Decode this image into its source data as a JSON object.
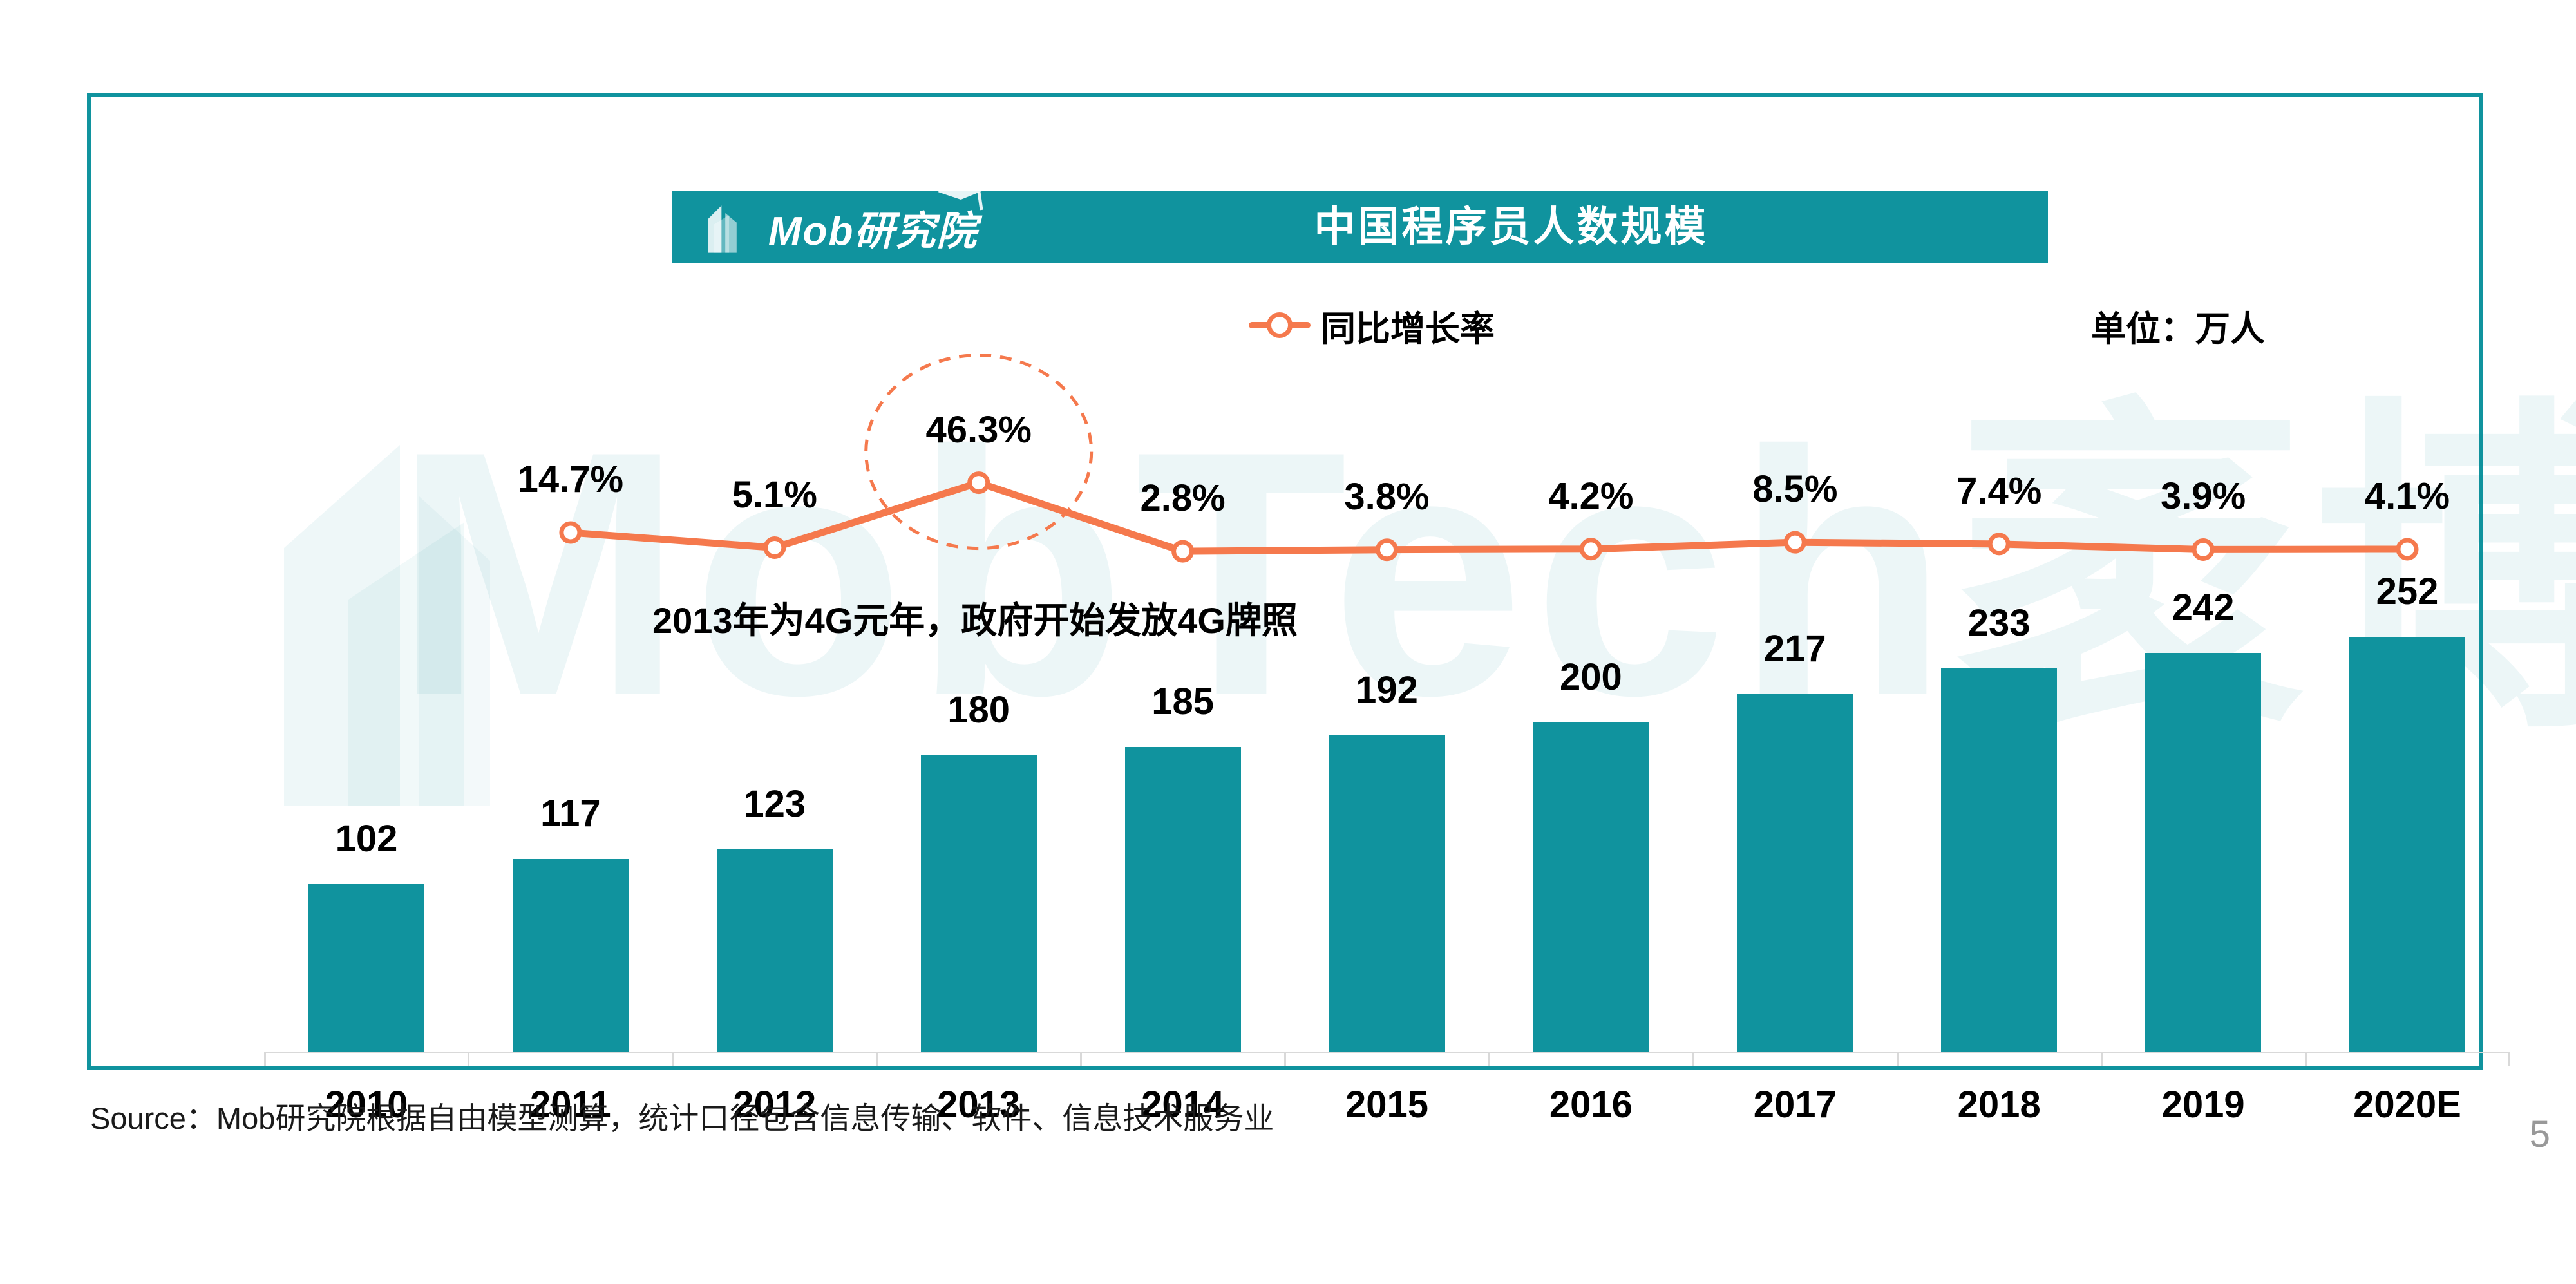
{
  "header": {
    "logo_text": "Mob研究院",
    "title": "中国程序员人数规模"
  },
  "legend": {
    "label": "同比增长率",
    "unit_label": "单位：万人"
  },
  "watermark": {
    "text": "MobTech袤博"
  },
  "annotation": {
    "text": "2013年为4G元年，政府开始发放4G牌照"
  },
  "footer": {
    "source": "Source：Mob研究院根据自由模型测算，统计口径包含信息传输、软件、信息技术服务业",
    "page_number": "5"
  },
  "colors": {
    "teal": "#10939E",
    "orange": "#F5794D",
    "axis_gray": "#D9D9D9",
    "label_black": "#000000",
    "page_number_gray": "#999999"
  },
  "chart_data": {
    "type": "bar",
    "title": "中国程序员人数规模",
    "unit": "万人",
    "grid": false,
    "legend_position": "top-center",
    "categories": [
      "2010",
      "2011",
      "2012",
      "2013",
      "2014",
      "2015",
      "2016",
      "2017",
      "2018",
      "2019",
      "2020E"
    ],
    "series": [
      {
        "name": "中国程序员人数规模",
        "type": "bar",
        "unit": "万人",
        "values": [
          102,
          117,
          123,
          180,
          185,
          192,
          200,
          217,
          233,
          242,
          252
        ]
      },
      {
        "name": "同比增长率",
        "type": "line",
        "unit": "%",
        "values": [
          null,
          14.7,
          5.1,
          46.3,
          2.8,
          3.8,
          4.2,
          8.5,
          7.4,
          3.9,
          4.1
        ],
        "labels": [
          null,
          "14.7%",
          "5.1%",
          "46.3%",
          "2.8%",
          "3.8%",
          "4.2%",
          "8.5%",
          "7.4%",
          "3.9%",
          "4.1%"
        ]
      }
    ],
    "highlight": {
      "category": "2013",
      "value_label": "46.3%"
    },
    "annotation": "2013年为4G元年，政府开始发放4G牌照"
  }
}
